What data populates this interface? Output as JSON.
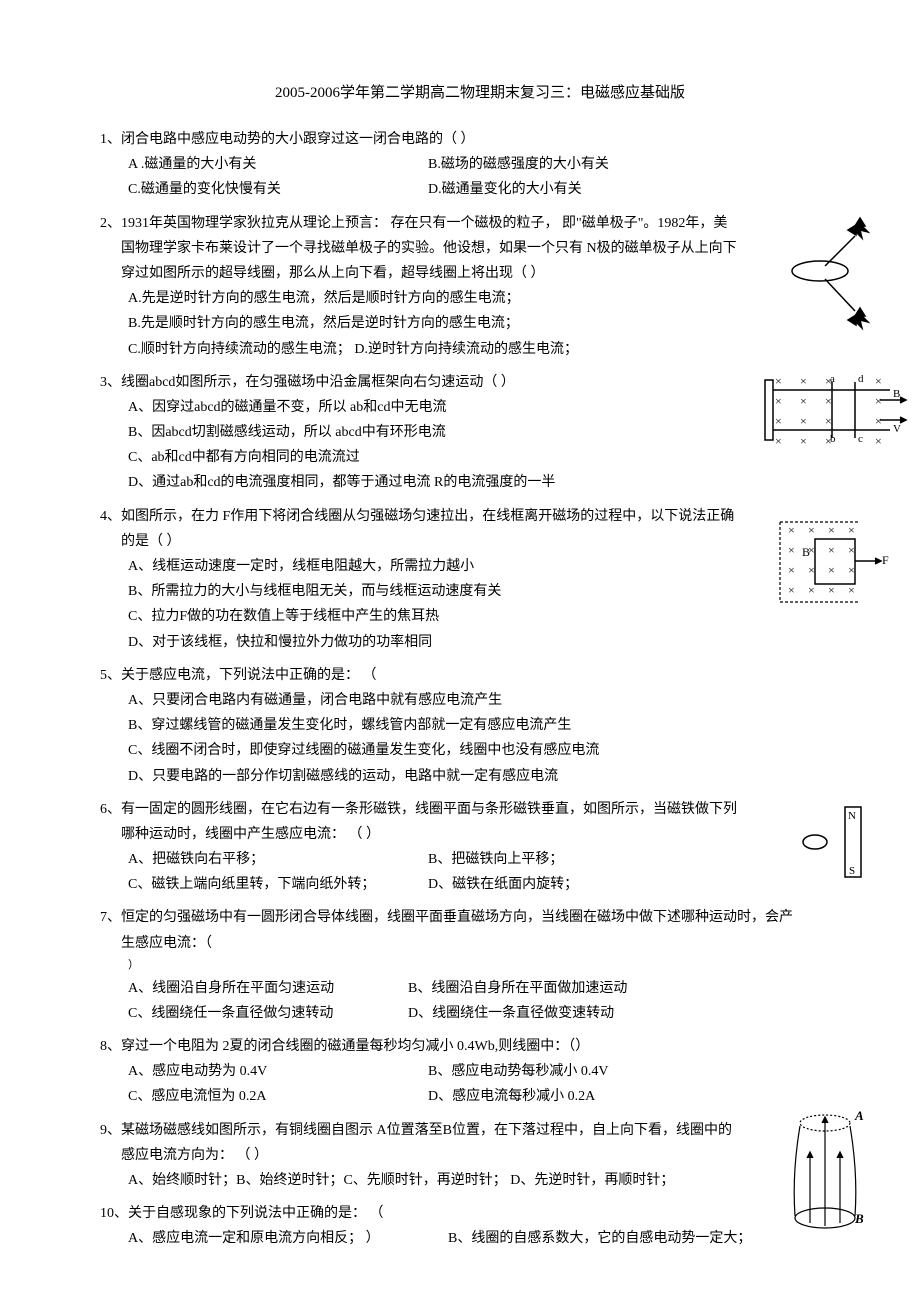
{
  "title": "2005-2006学年第二学期高二物理期末复习三：电磁感应基础版",
  "questions": [
    {
      "num": "1、",
      "text": "闭合电路中感应电动势的大小跟穿过这一闭合电路的（      ）",
      "options_layout": "pair",
      "options": [
        {
          "label": "A .磁通量的大小有关",
          "label2": "B.磁场的磁感强度的大小有关"
        },
        {
          "label": "C.磁通量的变化快慢有关",
          "label2": "D.磁通量变化的大小有关"
        }
      ]
    },
    {
      "num": "2、",
      "text": "1931年英国物理学家狄拉克从理论上预言：      存在只有一个磁极的粒子，    即\"磁单极子\"。1982年，美国物理学家卡布莱设计了一个寻找磁单极子的实验。他设想，如果一个只有 N极的磁单极子从上向下穿过如图所示的超导线圈，那么从上向下看，超导线圈上将出现（        ）",
      "options_layout": "single",
      "options": [
        {
          "label": "A.先是逆时针方向的感生电流，然后是顺时针方向的感生电流；"
        },
        {
          "label": "B.先是顺时针方向的感生电流，然后是逆时针方向的感生电流；"
        },
        {
          "label": "C.顺时针方向持续流动的感生电流；              D.逆时针方向持续流动的感生电流；"
        }
      ],
      "figure": "fig2"
    },
    {
      "num": "3、",
      "text": "线圈abcd如图所示，在匀强磁场中沿金属框架向右匀速运动（              ）",
      "options_layout": "single",
      "options": [
        {
          "label": "A、因穿过abcd的磁通量不变，所以 ab和cd中无电流"
        },
        {
          "label": "B、因abcd切割磁感线运动，所以 abcd中有环形电流"
        },
        {
          "label": "C、ab和cd中都有方向相同的电流流过"
        },
        {
          "label": "D、通过ab和cd的电流强度相同，都等于通过电流        R的电流强度的一半"
        }
      ],
      "figure": "fig3"
    },
    {
      "num": "4、",
      "text": "如图所示，在力 F作用下将闭合线圈从匀强磁场匀速拉出，在线框离开磁场的过程中，以下说法正确的是（      ）",
      "options_layout": "single",
      "options": [
        {
          "label": "A、线框运动速度一定时，线框电阻越大，所需拉力越小"
        },
        {
          "label": "B、所需拉力的大小与线框电阻无关，而与线框运动速度有关"
        },
        {
          "label": "C、拉力F做的功在数值上等于线框中产生的焦耳热"
        },
        {
          "label": "D、对于该线框，快拉和慢拉外力做功的功率相同"
        }
      ],
      "figure": "fig4"
    },
    {
      "num": "5、",
      "text": "关于感应电流，下列说法中正确的是：    （",
      "options_layout": "single",
      "options": [
        {
          "label": "A、只要闭合电路内有磁通量，闭合电路中就有感应电流产生"
        },
        {
          "label": "B、穿过螺线管的磁通量发生变化时，螺线管内部就一定有感应电流产生"
        },
        {
          "label": "C、线圈不闭合时，即使穿过线圈的磁通量发生变化，线圈中也没有感应电流"
        },
        {
          "label": "D、只要电路的一部分作切割磁感线的运动，电路中就一定有感应电流"
        }
      ]
    },
    {
      "num": "6、",
      "text": "有一固定的圆形线圈，在它右边有一条形磁铁，线圈平面与条形磁铁垂直，如图所示，当磁铁做下列哪种运动时，线圈中产生感应电流：    （      ）",
      "options_layout": "pair",
      "options": [
        {
          "label": "A、把磁铁向右平移；",
          "label2": "B、把磁铁向上平移；"
        },
        {
          "label": "C、磁铁上端向纸里转，下端向纸外转；",
          "label2": "D、磁铁在纸面内旋转；"
        }
      ],
      "figure": "fig6"
    },
    {
      "num": "7、",
      "text": "恒定的匀强磁场中有一圆形闭合导体线圈，线圈平面垂直磁场方向，当线圈在磁场中做下述哪种运动时，会产生感应电流：（",
      "options_layout": "pair_close",
      "options": [
        {
          "label": "A、线圈沿自身所在平面匀速运动",
          "label2": "B、线圈沿自身所在平面做加速运动"
        },
        {
          "label": "C、线圈绕任一条直径做匀速转动",
          "label2": "D、线圈绕住一条直径做变速转动"
        }
      ]
    },
    {
      "num": "8、",
      "text": "穿过一个电阻为 2夏的闭合线圈的磁通量每秒均匀减小      0.4Wb,则线圈中：（）",
      "options_layout": "pair",
      "options": [
        {
          "label": "A、感应电动势为 0.4V",
          "label2": "B、感应电动势每秒减小    0.4V"
        },
        {
          "label": "C、感应电流恒为 0.2A",
          "label2": "D、感应电流每秒减小 0.2A"
        }
      ]
    },
    {
      "num": "9、",
      "text": "某磁场磁感线如图所示，有铜线圈自图示      A位置落至B位置，在下落过程中，自上向下看，线圈中的感应电流方向为：    （      ）",
      "options_layout": "single",
      "options": [
        {
          "label": "A、始终顺时针；B、始终逆时针；C、先顺时针，再逆时针；       D、先逆时针，再顺时针；"
        }
      ],
      "figure": "fig9"
    },
    {
      "num": "10、",
      "text": "关于自感现象的下列说法中正确的是：      （",
      "options_layout": "pair_wide",
      "options": [
        {
          "label": "A、感应电流一定和原电流方向相反；       ）",
          "label2": "B、线圈的自感系数大，它的自感电动势一定大；"
        }
      ]
    }
  ],
  "figures": {
    "fig2": {
      "type": "monopole",
      "colors": {
        "stroke": "#000"
      }
    },
    "fig3": {
      "type": "field-grid",
      "labels": [
        "a",
        "b",
        "c",
        "d",
        "B",
        "V"
      ],
      "symbol": "×"
    },
    "fig4": {
      "type": "field-box",
      "labels": [
        "B",
        "F"
      ],
      "symbol": "×"
    },
    "fig6": {
      "type": "bar-magnet",
      "labels": [
        "N",
        "S"
      ]
    },
    "fig9": {
      "type": "field-lines",
      "labels": [
        "A",
        "B"
      ]
    }
  }
}
